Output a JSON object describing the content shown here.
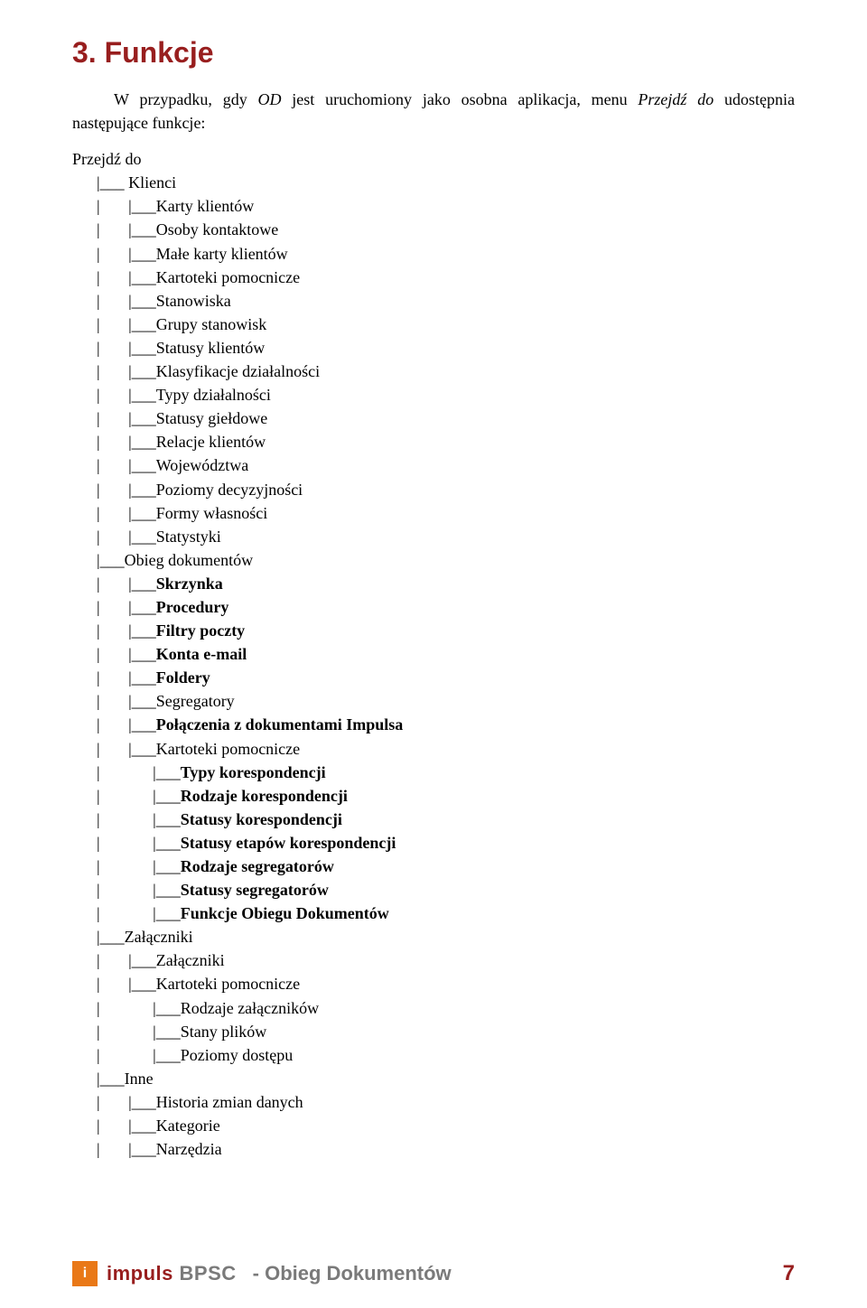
{
  "section_title": "3. Funkcje",
  "intro": {
    "pre": "W przypadku, gdy ",
    "od": "OD",
    "mid1": " jest uruchomiony jako osobna aplikacja, menu ",
    "przejdz": "Przejdź do",
    "post": " udostępnia następujące funkcje:"
  },
  "root_label": "Przejdź do",
  "tree": {
    "klienci": {
      "label": "Klienci",
      "items": {
        "karty": "Karty klientów",
        "osoby": "Osoby kontaktowe",
        "male": "Małe karty klientów",
        "kartoteki": "Kartoteki pomocnicze",
        "stanowiska": "Stanowiska",
        "grupy": "Grupy stanowisk",
        "statusy_klientow": "Statusy klientów",
        "klasyfikacje": "Klasyfikacje działalności",
        "typy_dzialalnosci": "Typy działalności",
        "statusy_gieldowe": "Statusy giełdowe",
        "relacje": "Relacje klientów",
        "wojewodztwa": "Województwa",
        "poziomy_dec": "Poziomy decyzyjności",
        "formy": "Formy własności",
        "statystyki": "Statystyki"
      }
    },
    "obieg": {
      "label": "Obieg dokumentów",
      "items": {
        "skrzynka": "Skrzynka",
        "procedury": "Procedury",
        "filtry": "Filtry poczty",
        "konta": "Konta e-mail",
        "foldery": "Foldery",
        "segregatory": "Segregatory",
        "polaczenia": "Połączenia z dokumentami Impulsa",
        "kartoteki": "Kartoteki pomocnicze",
        "typy_kor": "Typy korespondencji",
        "rodzaje_kor": "Rodzaje korespondencji",
        "statusy_kor": "Statusy korespondencji",
        "statusy_etapow": "Statusy etapów korespondencji",
        "rodzaje_seg": "Rodzaje segregatorów",
        "statusy_seg": "Statusy segregatorów",
        "funkcje_od": "Funkcje Obiegu Dokumentów"
      }
    },
    "zalaczniki": {
      "label": "Załączniki",
      "items": {
        "zal": "Załączniki",
        "kartoteki": "Kartoteki pomocnicze",
        "rodzaje_zal": "Rodzaje załączników",
        "stany": "Stany plików",
        "poziomy_dost": "Poziomy dostępu"
      }
    },
    "inne": {
      "label": "Inne",
      "items": {
        "historia": "Historia zmian danych",
        "kategorie": "Kategorie",
        "narzedzia": "Narzędzia"
      }
    }
  },
  "footer": {
    "logo_glyph": "i",
    "brand_red": "impuls",
    "brand_gray": " BPSC",
    "dash": "  - ",
    "title": "Obieg Dokumentów",
    "page": "7"
  },
  "colors": {
    "heading": "#981e1e",
    "text": "#000000",
    "footer_gray": "#7a7a7a",
    "logo_bg": "#e97817",
    "background": "#ffffff"
  }
}
